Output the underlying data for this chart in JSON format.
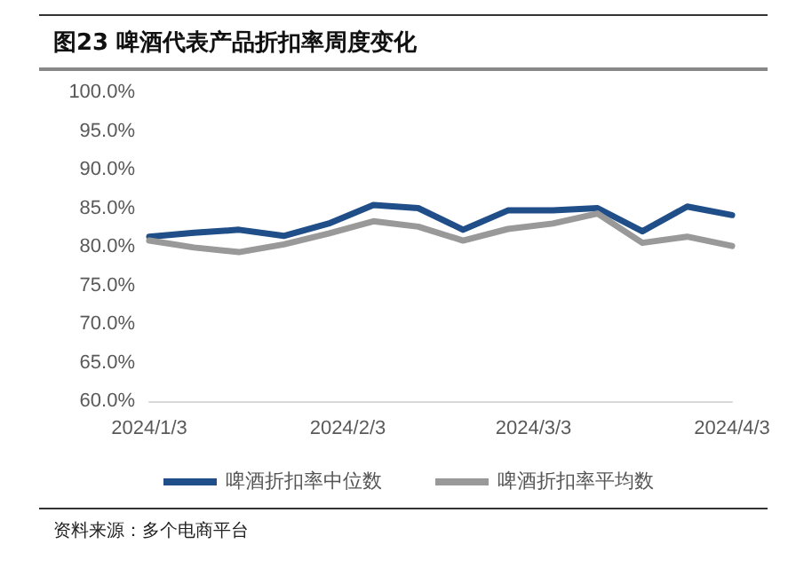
{
  "chart_data": {
    "type": "line",
    "title": "图23 啤酒代表产品折扣率周度变化",
    "x": [
      "2024-01-03",
      "2024-01-10",
      "2024-01-17",
      "2024-01-24",
      "2024-01-31",
      "2024-02-07",
      "2024-02-14",
      "2024-02-21",
      "2024-02-28",
      "2024-03-06",
      "2024-03-13",
      "2024-03-20",
      "2024-03-27",
      "2024-04-03"
    ],
    "series": [
      {
        "name": "啤酒折扣率中位数",
        "color": "#1f4e89",
        "values": [
          81.3,
          81.8,
          82.2,
          81.4,
          83.0,
          85.4,
          85.0,
          82.2,
          84.7,
          84.7,
          85.0,
          82.0,
          85.2,
          84.1
        ]
      },
      {
        "name": "啤酒折扣率平均数",
        "color": "#999999",
        "values": [
          80.8,
          79.9,
          79.3,
          80.3,
          81.7,
          83.3,
          82.6,
          80.8,
          82.3,
          83.0,
          84.3,
          80.5,
          81.3,
          80.1
        ]
      }
    ],
    "xlim": [
      "2024-01-03",
      "2024-04-03"
    ],
    "xticks": [
      {
        "value": "2024-01-03",
        "label": "2024/1/3"
      },
      {
        "value": "2024-02-03",
        "label": "2024/2/3"
      },
      {
        "value": "2024-03-03",
        "label": "2024/3/3"
      },
      {
        "value": "2024-04-03",
        "label": "2024/4/3"
      }
    ],
    "ylim": [
      60,
      100
    ],
    "yticks": [
      {
        "value": 60,
        "label": "60.0%"
      },
      {
        "value": 65,
        "label": "65.0%"
      },
      {
        "value": 70,
        "label": "70.0%"
      },
      {
        "value": 75,
        "label": "75.0%"
      },
      {
        "value": 80,
        "label": "80.0%"
      },
      {
        "value": 85,
        "label": "85.0%"
      },
      {
        "value": 90,
        "label": "90.0%"
      },
      {
        "value": 95,
        "label": "95.0%"
      },
      {
        "value": 100,
        "label": "100.0%"
      }
    ],
    "grid": false,
    "legend": "bottom",
    "marker": "none",
    "line_style": "solid",
    "annotations": [
      "资料来源：多个电商平台"
    ]
  }
}
